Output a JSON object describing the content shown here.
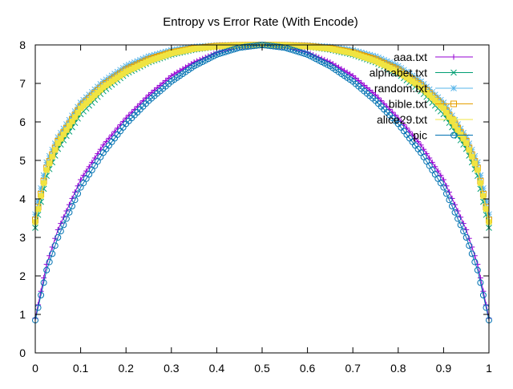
{
  "chart_data": {
    "type": "line",
    "title": "Entropy vs Error Rate (With Encode)",
    "xlabel": "",
    "ylabel": "",
    "xlim": [
      0,
      1
    ],
    "ylim": [
      0,
      8
    ],
    "xticks": [
      0,
      0.1,
      0.2,
      0.3,
      0.4,
      0.5,
      0.6,
      0.7,
      0.8,
      0.9,
      1
    ],
    "xtick_labels": [
      "0",
      "0.1",
      "0.2",
      "0.3",
      "0.4",
      "0.5",
      "0.6",
      "0.7",
      "0.8",
      "0.9",
      "1"
    ],
    "yticks": [
      0,
      1,
      2,
      3,
      4,
      5,
      6,
      7,
      8
    ],
    "ytick_labels": [
      "0",
      "1",
      "2",
      "3",
      "4",
      "5",
      "6",
      "7",
      "8"
    ],
    "grid": false,
    "legend_position": "top-right",
    "x": [
      0,
      0.025,
      0.05,
      0.1,
      0.15,
      0.2,
      0.25,
      0.3,
      0.35,
      0.4,
      0.45,
      0.5,
      0.55,
      0.6,
      0.65,
      0.7,
      0.75,
      0.8,
      0.85,
      0.9,
      0.95,
      0.975,
      1
    ],
    "series": [
      {
        "name": "aaa.txt",
        "color": "#9400d3",
        "marker": "plus",
        "values": [
          0.9,
          2.3,
          3.2,
          4.5,
          5.4,
          6.1,
          6.7,
          7.2,
          7.55,
          7.8,
          7.95,
          8.0,
          7.95,
          7.8,
          7.55,
          7.2,
          6.7,
          6.1,
          5.4,
          4.5,
          3.2,
          2.3,
          0.9
        ]
      },
      {
        "name": "alphabet.txt",
        "color": "#009e73",
        "marker": "cross",
        "values": [
          3.25,
          4.6,
          5.3,
          6.2,
          6.8,
          7.25,
          7.55,
          7.75,
          7.88,
          7.96,
          7.99,
          8.0,
          7.99,
          7.96,
          7.88,
          7.75,
          7.55,
          7.25,
          6.8,
          6.2,
          5.3,
          4.6,
          3.25
        ]
      },
      {
        "name": "random.txt",
        "color": "#56b4e9",
        "marker": "asterisk",
        "values": [
          3.6,
          4.95,
          5.6,
          6.5,
          7.05,
          7.45,
          7.7,
          7.86,
          7.95,
          7.99,
          8.0,
          8.0,
          8.0,
          7.99,
          7.95,
          7.86,
          7.7,
          7.45,
          7.05,
          6.5,
          5.6,
          4.95,
          3.6
        ]
      },
      {
        "name": "bible.txt",
        "color": "#e69f00",
        "marker": "square",
        "values": [
          3.45,
          4.8,
          5.5,
          6.4,
          6.95,
          7.35,
          7.62,
          7.8,
          7.91,
          7.97,
          7.99,
          8.0,
          7.99,
          7.97,
          7.91,
          7.8,
          7.62,
          7.35,
          6.95,
          6.4,
          5.5,
          4.8,
          3.45
        ]
      },
      {
        "name": "alice29.txt",
        "color": "#f0e442",
        "marker": "square-filled",
        "values": [
          3.4,
          4.75,
          5.45,
          6.35,
          6.9,
          7.3,
          7.58,
          7.78,
          7.9,
          7.96,
          7.99,
          8.0,
          7.99,
          7.96,
          7.9,
          7.78,
          7.58,
          7.3,
          6.9,
          6.35,
          5.45,
          4.75,
          3.4
        ]
      },
      {
        "name": "pic",
        "color": "#0072b2",
        "marker": "circle",
        "values": [
          0.85,
          2.15,
          3.0,
          4.3,
          5.2,
          5.95,
          6.55,
          7.05,
          7.45,
          7.75,
          7.93,
          8.0,
          7.93,
          7.75,
          7.45,
          7.05,
          6.55,
          5.95,
          5.2,
          4.3,
          3.0,
          2.15,
          0.85
        ]
      }
    ]
  }
}
